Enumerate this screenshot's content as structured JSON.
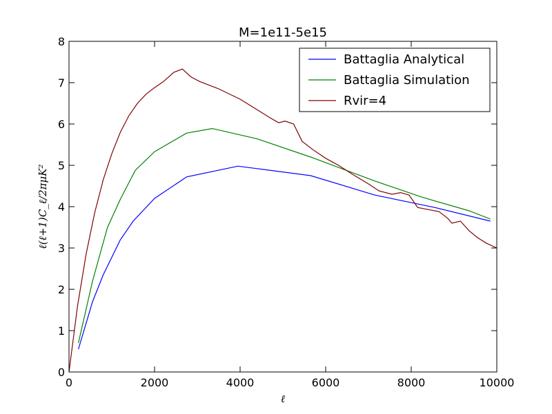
{
  "chart_data": {
    "type": "line",
    "title": "M=1e11-5e15",
    "xlabel": "ℓ",
    "ylabel": "ℓ(ℓ+1)C_ℓ/2πμK²",
    "xlim": [
      0,
      10000
    ],
    "ylim": [
      0,
      8
    ],
    "xticks": [
      "0",
      "2000",
      "4000",
      "6000",
      "8000",
      "10000"
    ],
    "yticks": [
      "0",
      "1",
      "2",
      "3",
      "4",
      "5",
      "6",
      "7",
      "8"
    ],
    "grid": false,
    "legend_position": "top-right",
    "series": [
      {
        "name": "Battaglia Analytical",
        "color": "#0000ff",
        "x": [
          220,
          550,
          800,
          1200,
          1500,
          2000,
          2750,
          3950,
          4400,
          5650,
          7150,
          8550,
          9850
        ],
        "y": [
          0.55,
          1.7,
          2.35,
          3.2,
          3.65,
          4.2,
          4.72,
          4.98,
          4.92,
          4.75,
          4.28,
          3.98,
          3.65
        ]
      },
      {
        "name": "Battaglia Simulation",
        "color": "#008000",
        "x": [
          220,
          550,
          900,
          1200,
          1550,
          2000,
          2750,
          3350,
          4400,
          5650,
          7150,
          8250,
          9350,
          9850
        ],
        "y": [
          0.7,
          2.2,
          3.5,
          4.18,
          4.88,
          5.33,
          5.78,
          5.89,
          5.64,
          5.2,
          4.62,
          4.23,
          3.9,
          3.7
        ]
      },
      {
        "name": "Rvir=4",
        "color": "#800000",
        "x": [
          0,
          200,
          400,
          600,
          800,
          1000,
          1200,
          1400,
          1600,
          1800,
          2000,
          2200,
          2450,
          2650,
          2850,
          3050,
          3500,
          4000,
          4500,
          4700,
          4900,
          5050,
          5250,
          5450,
          5700,
          6000,
          6300,
          6600,
          7000,
          7250,
          7550,
          7750,
          7950,
          8150,
          8450,
          8650,
          8850,
          8950,
          9150,
          9350,
          9550,
          9750,
          10000
        ],
        "y": [
          0,
          1.6,
          2.85,
          3.85,
          4.65,
          5.28,
          5.8,
          6.2,
          6.5,
          6.72,
          6.88,
          7.02,
          7.25,
          7.33,
          7.14,
          7.03,
          6.85,
          6.6,
          6.28,
          6.15,
          6.03,
          6.07,
          6.0,
          5.58,
          5.38,
          5.17,
          5.0,
          4.8,
          4.55,
          4.38,
          4.3,
          4.34,
          4.28,
          3.98,
          3.92,
          3.88,
          3.72,
          3.6,
          3.65,
          3.42,
          3.25,
          3.12,
          3.0
        ]
      }
    ]
  }
}
